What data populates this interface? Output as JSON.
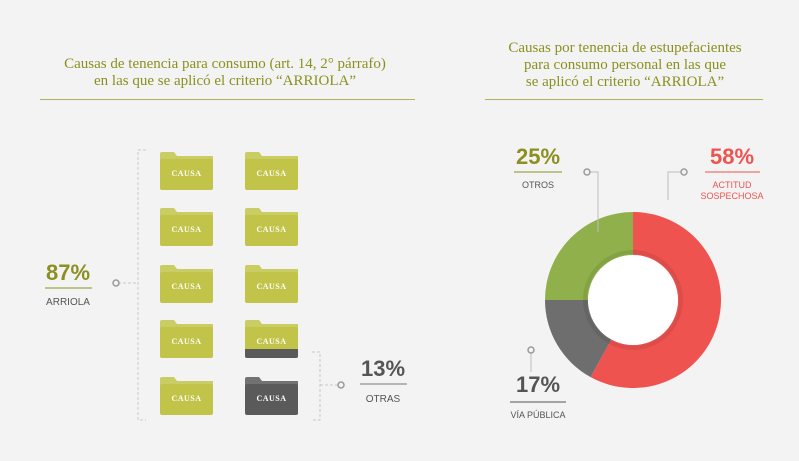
{
  "left": {
    "title_line1": "Causas de tenencia para consumo (art. 14, 2° párrafo)",
    "title_line2": "en las que se aplicó el criterio “ARRIOLA”",
    "folder_label": "CAUSA",
    "folder_count": 10,
    "arriola_pct": "87%",
    "arriola_label": "ARRIOLA",
    "otras_pct": "13%",
    "otras_label": "OTRAS"
  },
  "right": {
    "title_line1": "Causas por tenencia de estupefacientes",
    "title_line2": "para consumo personal en las que",
    "title_line3": "se aplicó el criterio “ARRIOLA”"
  },
  "colors": {
    "olive": "#8b9020",
    "folder": "#c2c44a",
    "folder_dark": "#5a5a5a",
    "red": "#ef5350",
    "green": "#8fb04a",
    "gray": "#6e6e6e"
  },
  "chart_data": [
    {
      "type": "pictogram",
      "title": "Causas de tenencia para consumo (art. 14, 2° párrafo) en las que se aplicó el criterio “ARRIOLA”",
      "categories": [
        "ARRIOLA",
        "OTRAS"
      ],
      "values": [
        87,
        13
      ],
      "labels": [
        "87%",
        "13%"
      ]
    },
    {
      "type": "pie",
      "variant": "donut",
      "title": "Causas por tenencia de estupefacientes para consumo personal en las que se aplicó el criterio “ARRIOLA”",
      "categories": [
        "ACTITUD SOSPECHOSA",
        "VÍA PÚBLICA",
        "OTROS"
      ],
      "values": [
        58,
        17,
        25
      ],
      "labels": [
        "58%",
        "17%",
        "25%"
      ],
      "colors": [
        "#ef5350",
        "#6e6e6e",
        "#8fb04a"
      ]
    }
  ]
}
